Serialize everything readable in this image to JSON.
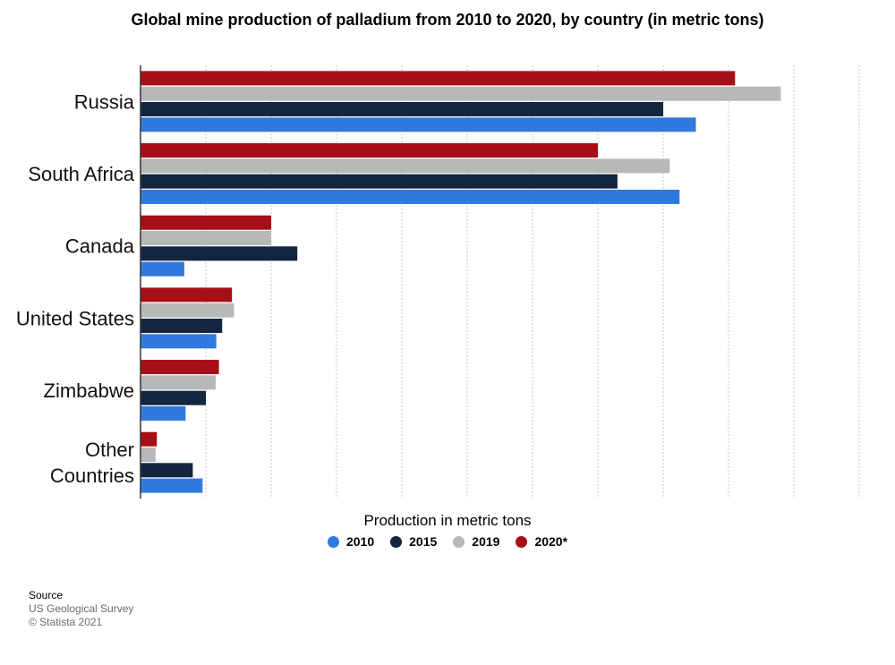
{
  "chart_data": {
    "type": "bar",
    "orientation": "horizontal",
    "title": "Global mine production of palladium from 2010 to 2020, by country (in metric tons)",
    "xlabel": "Production in metric tons",
    "ylabel": "",
    "categories": [
      "Russia",
      "South Africa",
      "Canada",
      "United States",
      "Zimbabwe",
      "Other Countries"
    ],
    "series": [
      {
        "name": "2020*",
        "color": "#a50f15",
        "values": [
          91,
          70,
          20,
          14,
          12,
          2.5
        ]
      },
      {
        "name": "2019",
        "color": "#b8b8b8",
        "values": [
          98,
          81,
          20,
          14.3,
          11.5,
          2.3
        ]
      },
      {
        "name": "2015",
        "color": "#13253f",
        "values": [
          80,
          73,
          24,
          12.5,
          10,
          8
        ]
      },
      {
        "name": "2010",
        "color": "#2f7ae0",
        "values": [
          85,
          82.5,
          6.7,
          11.6,
          6.9,
          9.5
        ]
      }
    ],
    "xlim": [
      0,
      110
    ],
    "grid": true,
    "legend_position": "bottom",
    "legend_order": [
      "2010",
      "2015",
      "2019",
      "2020*"
    ]
  },
  "source": {
    "heading": "Source",
    "org": "US Geological Survey",
    "copyright": "© Statista 2021"
  }
}
